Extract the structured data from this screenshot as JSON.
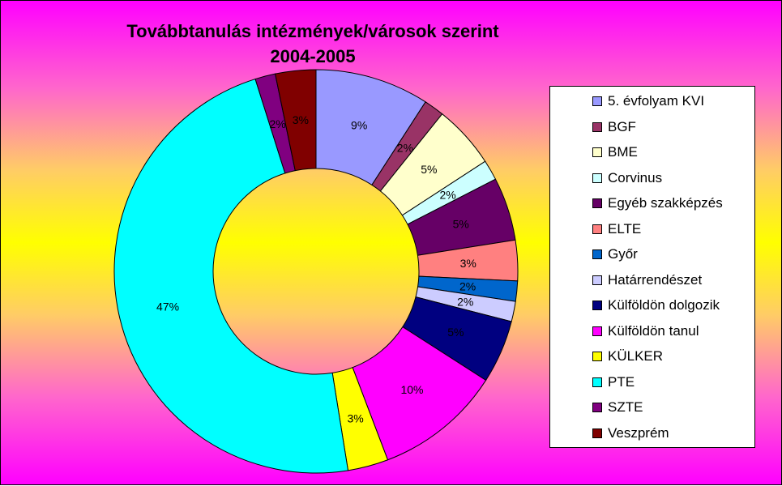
{
  "chart_data": {
    "type": "pie",
    "variant": "doughnut",
    "title": "Továbbtanulás intézmények/városok szerint",
    "subtitle": "2004-2005",
    "categories": [
      "5. évfolyam KVI",
      "BGF",
      "BME",
      "Corvinus",
      "Egyéb szakképzés",
      "ELTE",
      "Győr",
      "Határrendészet",
      "Külföldön dolgozik",
      "Külföldön tanul",
      "KÜLKER",
      "PTE",
      "SZTE",
      "Veszprém"
    ],
    "values": [
      9,
      1.6,
      5,
      1.6,
      5,
      3.2,
      1.6,
      1.6,
      5,
      10,
      3.2,
      47,
      1.6,
      3.2
    ],
    "data_labels": [
      "9%",
      "2%",
      "5%",
      "2%",
      "5%",
      "3%",
      "2%",
      "2%",
      "5%",
      "10%",
      "3%",
      "47%",
      "2%",
      "3%"
    ],
    "colors": [
      "#9999ff",
      "#993366",
      "#ffffcc",
      "#ccffff",
      "#660066",
      "#ff8080",
      "#0066cc",
      "#ccccff",
      "#000080",
      "#ff00ff",
      "#ffff00",
      "#00ffff",
      "#800080",
      "#800000"
    ],
    "legend_position": "right"
  }
}
